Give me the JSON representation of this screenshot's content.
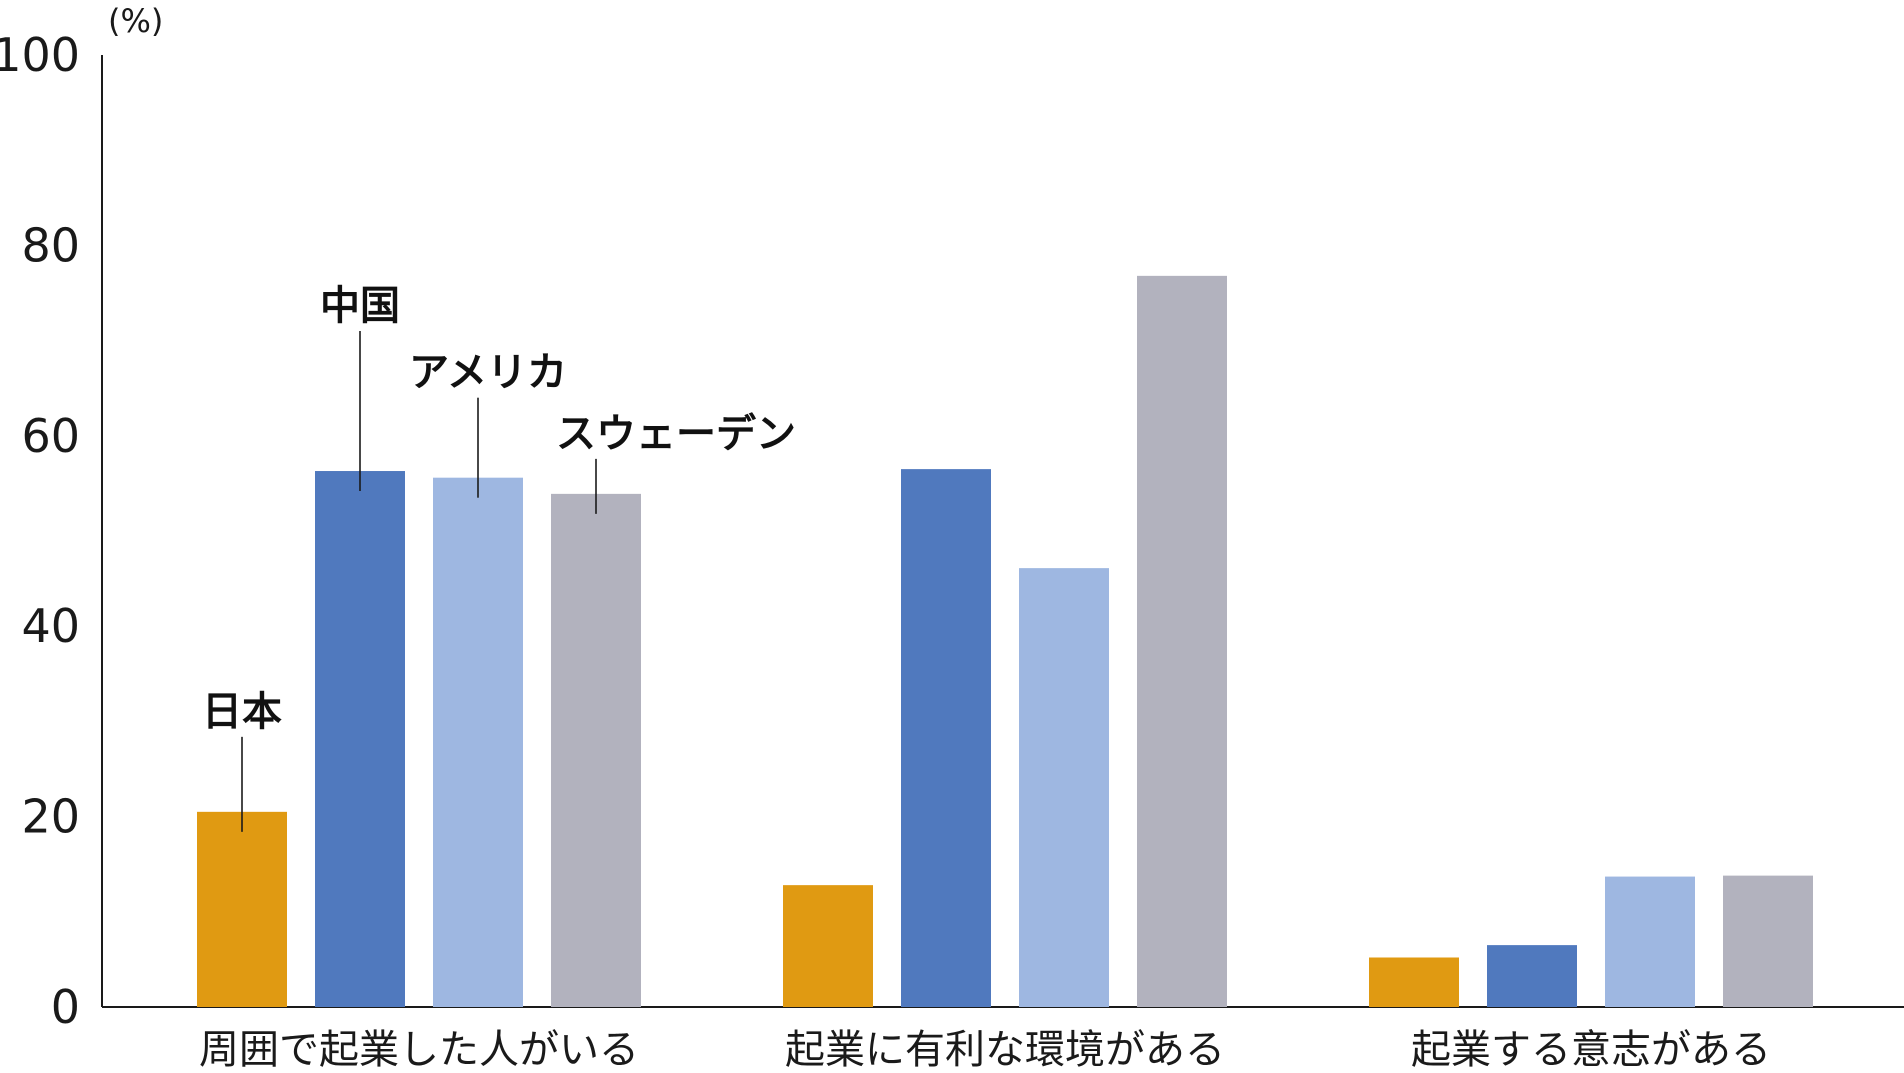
{
  "chart_data": {
    "type": "bar",
    "unit_label": "(%)",
    "ylim": [
      0,
      100
    ],
    "yticks": [
      "0",
      "20",
      "40",
      "60",
      "80",
      "100"
    ],
    "grid": false,
    "categories": [
      "周囲で起業した人がいる",
      "起業に有利な環境がある",
      "起業する意志がある"
    ],
    "series": [
      {
        "name": "日本",
        "color": "#E09A12",
        "values": [
          20.5,
          12.8,
          5.2
        ]
      },
      {
        "name": "中国",
        "color": "#5079BE",
        "values": [
          56.3,
          56.5,
          6.5
        ]
      },
      {
        "name": "アメリカ",
        "color": "#9EB7E1",
        "values": [
          55.6,
          46.1,
          13.7
        ]
      },
      {
        "name": "スウェーデン",
        "color": "#B2B2BE",
        "values": [
          53.9,
          76.8,
          13.8
        ]
      }
    ],
    "legend_placement": "direct labels above first group"
  }
}
